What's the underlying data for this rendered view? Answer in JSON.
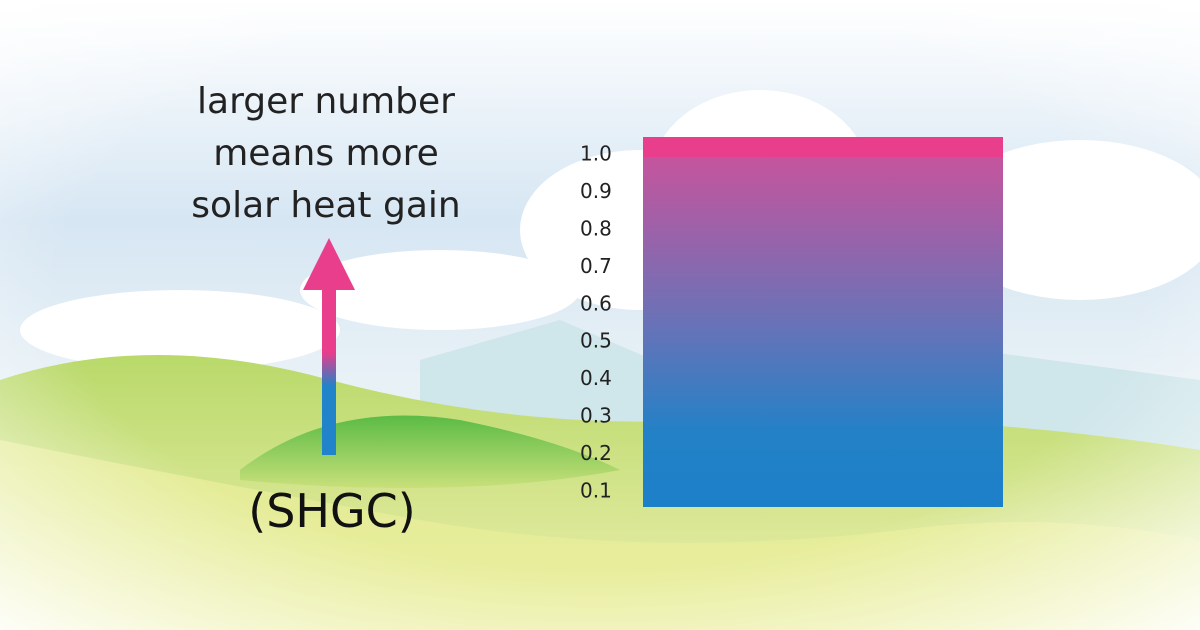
{
  "caption": {
    "lines": [
      "larger number",
      "means more",
      "solar heat gain"
    ]
  },
  "arrow_label": "(SHGC)",
  "scale": {
    "labels": [
      "1.0",
      "0.9",
      "0.8",
      "0.7",
      "0.6",
      "0.5",
      "0.4",
      "0.3",
      "0.2",
      "0.1"
    ]
  }
}
